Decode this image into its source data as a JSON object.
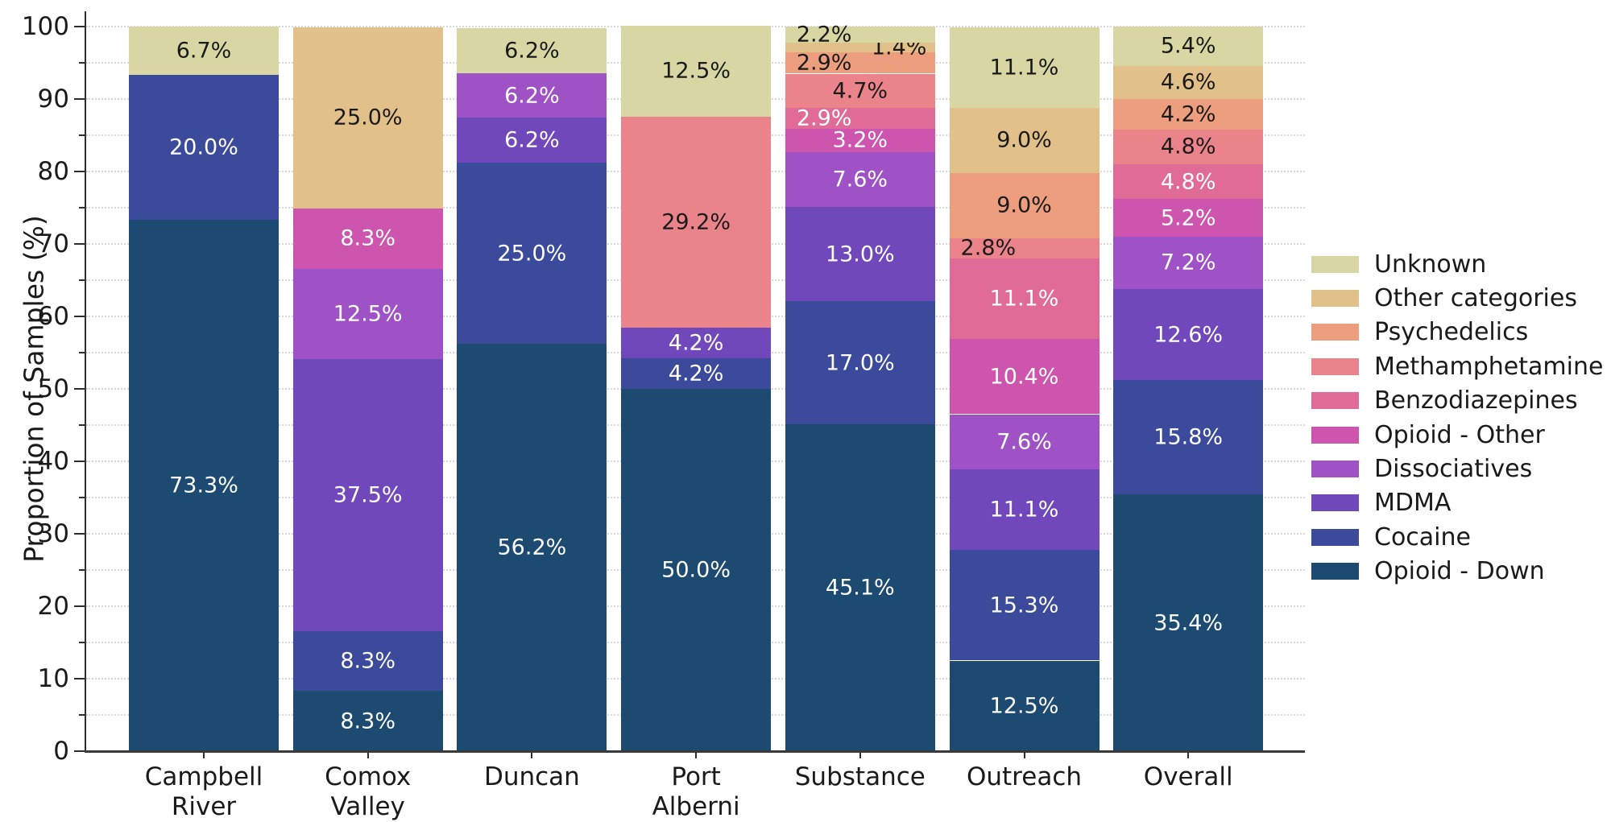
{
  "figure": {
    "title": "",
    "ylabel": "Proportion of Samples (%)"
  },
  "chart_data": {
    "type": "bar",
    "subtype": "stacked_percent_vertical",
    "title": "",
    "xlabel": "",
    "ylabel": "Proportion of Samples (%)",
    "ylim": [
      0,
      100
    ],
    "grid": "horizontal dotted every 5",
    "legend_position": "right",
    "y_ticks": [
      {
        "value": 0,
        "label": "0"
      },
      {
        "value": 10,
        "label": "10"
      },
      {
        "value": 20,
        "label": "20"
      },
      {
        "value": 30,
        "label": "30"
      },
      {
        "value": 40,
        "label": "40"
      },
      {
        "value": 50,
        "label": "50"
      },
      {
        "value": 60,
        "label": "60"
      },
      {
        "value": 70,
        "label": "70"
      },
      {
        "value": 80,
        "label": "80"
      },
      {
        "value": 90,
        "label": "90"
      },
      {
        "value": 100,
        "label": "100"
      }
    ],
    "legend": [
      {
        "name": "Unknown",
        "color": "#d8d6a3",
        "label_text_color": "#1a1a1a"
      },
      {
        "name": "Other categories",
        "color": "#e2c089",
        "label_text_color": "#1a1a1a"
      },
      {
        "name": "Psychedelics",
        "color": "#ec9e7e",
        "label_text_color": "#1a1a1a"
      },
      {
        "name": "Methamphetamine",
        "color": "#ea848a",
        "label_text_color": "#1a1a1a"
      },
      {
        "name": "Benzodiazepines",
        "color": "#e06b96",
        "label_text_color": "#ffffff"
      },
      {
        "name": "Opioid - Other",
        "color": "#cd55ae",
        "label_text_color": "#ffffff"
      },
      {
        "name": "Dissociatives",
        "color": "#9e52c5",
        "label_text_color": "#ffffff"
      },
      {
        "name": "MDMA",
        "color": "#7148bb",
        "label_text_color": "#ffffff"
      },
      {
        "name": "Cocaine",
        "color": "#3c4a9c",
        "label_text_color": "#ffffff"
      },
      {
        "name": "Opioid - Down",
        "color": "#1c4a71",
        "label_text_color": "#ffffff"
      }
    ],
    "columns": [
      {
        "name": "Campbell River",
        "label_lines": [
          "Campbell",
          "River"
        ],
        "segments": [
          {
            "category": "Opioid - Down",
            "value": 73.3,
            "label": "73.3%"
          },
          {
            "category": "Cocaine",
            "value": 20.0,
            "label": "20.0%"
          },
          {
            "category": "Unknown",
            "value": 6.7,
            "label": "6.7%"
          }
        ]
      },
      {
        "name": "Comox Valley",
        "label_lines": [
          "Comox",
          "Valley"
        ],
        "segments": [
          {
            "category": "Opioid - Down",
            "value": 8.3,
            "label": "8.3%"
          },
          {
            "category": "Cocaine",
            "value": 8.3,
            "label": "8.3%"
          },
          {
            "category": "MDMA",
            "value": 37.5,
            "label": "37.5%"
          },
          {
            "category": "Dissociatives",
            "value": 12.5,
            "label": "12.5%"
          },
          {
            "category": "Opioid - Other",
            "value": 8.3,
            "label": "8.3%"
          },
          {
            "category": "Other categories",
            "value": 25.0,
            "label": "25.0%"
          }
        ]
      },
      {
        "name": "Duncan",
        "label_lines": [
          "Duncan"
        ],
        "segments": [
          {
            "category": "Opioid - Down",
            "value": 56.2,
            "label": "56.2%"
          },
          {
            "category": "Cocaine",
            "value": 25.0,
            "label": "25.0%"
          },
          {
            "category": "MDMA",
            "value": 6.2,
            "label": "6.2%"
          },
          {
            "category": "Dissociatives",
            "value": 6.2,
            "label": "6.2%"
          },
          {
            "category": "Unknown",
            "value": 6.2,
            "label": "6.2%"
          }
        ]
      },
      {
        "name": "Port Alberni",
        "label_lines": [
          "Port",
          "Alberni"
        ],
        "segments": [
          {
            "category": "Opioid - Down",
            "value": 50.0,
            "label": "50.0%"
          },
          {
            "category": "Cocaine",
            "value": 4.2,
            "label": "4.2%"
          },
          {
            "category": "MDMA",
            "value": 4.2,
            "label": "4.2%"
          },
          {
            "category": "Methamphetamine",
            "value": 29.2,
            "label": "29.2%"
          },
          {
            "category": "Unknown",
            "value": 12.5,
            "label": "12.5%"
          }
        ]
      },
      {
        "name": "Substance",
        "label_lines": [
          "Substance"
        ],
        "segments": [
          {
            "category": "Opioid - Down",
            "value": 45.1,
            "label": "45.1%"
          },
          {
            "category": "Cocaine",
            "value": 17.0,
            "label": "17.0%"
          },
          {
            "category": "MDMA",
            "value": 13.0,
            "label": "13.0%"
          },
          {
            "category": "Dissociatives",
            "value": 7.6,
            "label": "7.6%"
          },
          {
            "category": "Opioid - Other",
            "value": 3.2,
            "label": "3.2%"
          },
          {
            "category": "Benzodiazepines",
            "value": 2.9,
            "label": "2.9%",
            "label_dx": -0.24
          },
          {
            "category": "Methamphetamine",
            "value": 4.7,
            "label": "4.7%"
          },
          {
            "category": "Psychedelics",
            "value": 2.9,
            "label": "2.9%",
            "label_dx": -0.24
          },
          {
            "category": "Other categories",
            "value": 1.4,
            "label": "1.4%",
            "label_dx": 0.26
          },
          {
            "category": "Unknown",
            "value": 2.2,
            "label": "2.2%",
            "label_dx": -0.24
          }
        ]
      },
      {
        "name": "Outreach",
        "label_lines": [
          "Outreach"
        ],
        "segments": [
          {
            "category": "Opioid - Down",
            "value": 12.5,
            "label": "12.5%"
          },
          {
            "category": "Cocaine",
            "value": 15.3,
            "label": "15.3%"
          },
          {
            "category": "MDMA",
            "value": 11.1,
            "label": "11.1%"
          },
          {
            "category": "Dissociatives",
            "value": 7.6,
            "label": "7.6%"
          },
          {
            "category": "Opioid - Other",
            "value": 10.4,
            "label": "10.4%"
          },
          {
            "category": "Benzodiazepines",
            "value": 11.1,
            "label": "11.1%"
          },
          {
            "category": "Methamphetamine",
            "value": 2.8,
            "label": "2.8%",
            "label_dx": -0.24
          },
          {
            "category": "Psychedelics",
            "value": 9.0,
            "label": "9.0%"
          },
          {
            "category": "Other categories",
            "value": 9.0,
            "label": "9.0%"
          },
          {
            "category": "Unknown",
            "value": 11.1,
            "label": "11.1%"
          }
        ]
      },
      {
        "name": "Overall",
        "label_lines": [
          "Overall"
        ],
        "segments": [
          {
            "category": "Opioid - Down",
            "value": 35.4,
            "label": "35.4%"
          },
          {
            "category": "Cocaine",
            "value": 15.8,
            "label": "15.8%"
          },
          {
            "category": "MDMA",
            "value": 12.6,
            "label": "12.6%"
          },
          {
            "category": "Dissociatives",
            "value": 7.2,
            "label": "7.2%"
          },
          {
            "category": "Opioid - Other",
            "value": 5.2,
            "label": "5.2%"
          },
          {
            "category": "Benzodiazepines",
            "value": 4.8,
            "label": "4.8%"
          },
          {
            "category": "Methamphetamine",
            "value": 4.8,
            "label": "4.8%"
          },
          {
            "category": "Psychedelics",
            "value": 4.2,
            "label": "4.2%"
          },
          {
            "category": "Other categories",
            "value": 4.6,
            "label": "4.6%"
          },
          {
            "category": "Unknown",
            "value": 5.4,
            "label": "5.4%"
          }
        ]
      }
    ]
  }
}
